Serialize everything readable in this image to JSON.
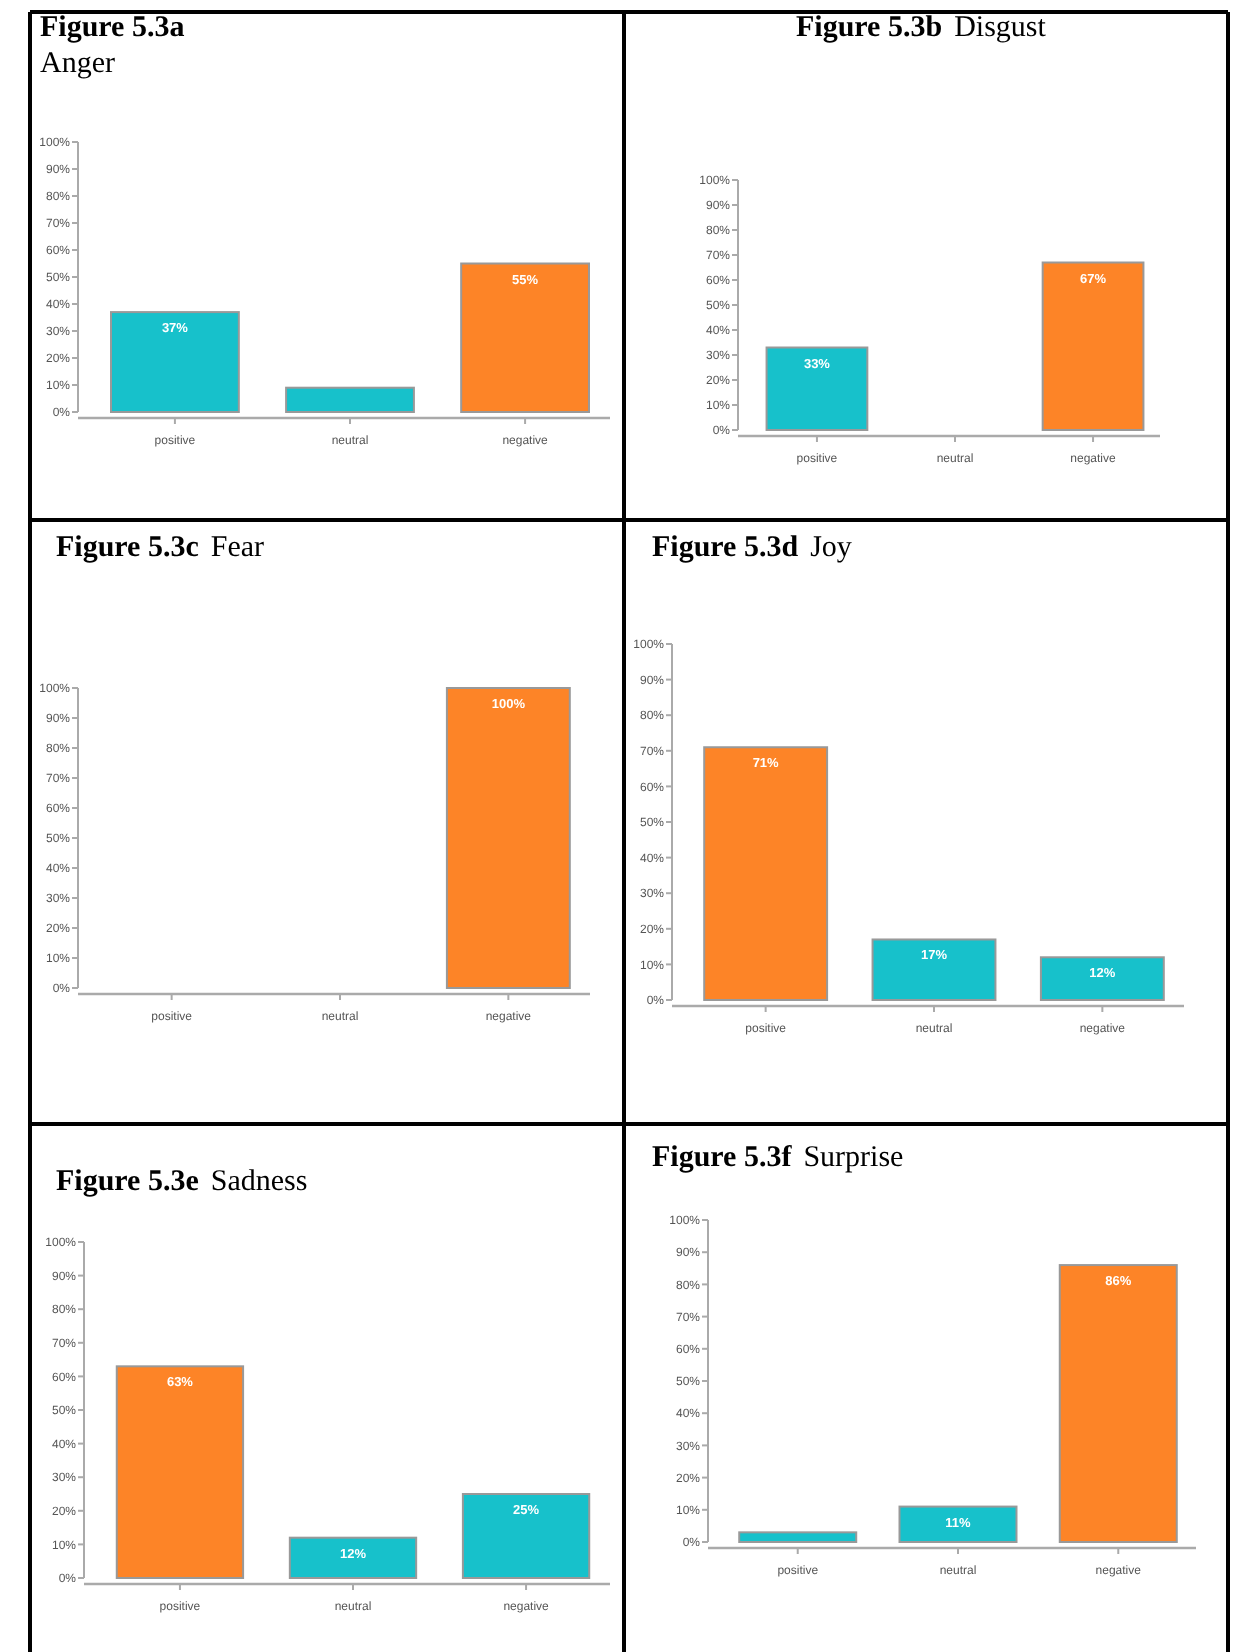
{
  "chart_data": [
    {
      "type": "bar",
      "title": "Figure 5.3a",
      "subtitle": "Anger",
      "categories": [
        "positive",
        "neutral",
        "negative"
      ],
      "values": [
        37,
        9,
        55
      ],
      "value_labels": [
        "37%",
        null,
        "55%"
      ],
      "colors": [
        "#17c1cb",
        "#17c1cb",
        "#fd8427"
      ],
      "ylim": [
        0,
        100
      ],
      "yticks": [
        {
          "value": 0,
          "label": "0%"
        },
        {
          "value": 10,
          "label": "10%"
        },
        {
          "value": 20,
          "label": "20%"
        },
        {
          "value": 30,
          "label": "30%"
        },
        {
          "value": 40,
          "label": "40%"
        },
        {
          "value": 50,
          "label": "50%"
        },
        {
          "value": 60,
          "label": "60%"
        },
        {
          "value": 70,
          "label": "70%"
        },
        {
          "value": 80,
          "label": "80%"
        },
        {
          "value": 90,
          "label": "90%"
        },
        {
          "value": 100,
          "label": "100%"
        }
      ],
      "grid": false
    },
    {
      "type": "bar",
      "title": "Figure 5.3b",
      "subtitle": "Disgust",
      "categories": [
        "positive",
        "neutral",
        "negative"
      ],
      "values": [
        33,
        0,
        67
      ],
      "value_labels": [
        "33%",
        null,
        "67%"
      ],
      "colors": [
        "#17c1cb",
        "#17c1cb",
        "#fd8427"
      ],
      "ylim": [
        0,
        100
      ],
      "yticks": [
        {
          "value": 0,
          "label": "0%"
        },
        {
          "value": 10,
          "label": "10%"
        },
        {
          "value": 20,
          "label": "20%"
        },
        {
          "value": 30,
          "label": "30%"
        },
        {
          "value": 40,
          "label": "40%"
        },
        {
          "value": 50,
          "label": "50%"
        },
        {
          "value": 60,
          "label": "60%"
        },
        {
          "value": 70,
          "label": "70%"
        },
        {
          "value": 80,
          "label": "80%"
        },
        {
          "value": 90,
          "label": "90%"
        },
        {
          "value": 100,
          "label": "100%"
        }
      ],
      "grid": false
    },
    {
      "type": "bar",
      "title": "Figure 5.3c",
      "subtitle": "Fear",
      "categories": [
        "positive",
        "neutral",
        "negative"
      ],
      "values": [
        0,
        0,
        100
      ],
      "value_labels": [
        null,
        null,
        "100%"
      ],
      "colors": [
        "#17c1cb",
        "#17c1cb",
        "#fd8427"
      ],
      "ylim": [
        0,
        100
      ],
      "yticks": [
        {
          "value": 0,
          "label": "0%"
        },
        {
          "value": 10,
          "label": "10%"
        },
        {
          "value": 20,
          "label": "20%"
        },
        {
          "value": 30,
          "label": "30%"
        },
        {
          "value": 40,
          "label": "40%"
        },
        {
          "value": 50,
          "label": "50%"
        },
        {
          "value": 60,
          "label": "60%"
        },
        {
          "value": 70,
          "label": "70%"
        },
        {
          "value": 80,
          "label": "80%"
        },
        {
          "value": 90,
          "label": "90%"
        },
        {
          "value": 100,
          "label": "100%"
        }
      ],
      "grid": false
    },
    {
      "type": "bar",
      "title": "Figure 5.3d",
      "subtitle": "Joy",
      "categories": [
        "positive",
        "neutral",
        "negative"
      ],
      "values": [
        71,
        17,
        12
      ],
      "value_labels": [
        "71%",
        "17%",
        "12%"
      ],
      "colors": [
        "#fd8427",
        "#17c1cb",
        "#17c1cb"
      ],
      "ylim": [
        0,
        100
      ],
      "yticks": [
        {
          "value": 0,
          "label": "0%"
        },
        {
          "value": 10,
          "label": "10%"
        },
        {
          "value": 20,
          "label": "20%"
        },
        {
          "value": 30,
          "label": "30%"
        },
        {
          "value": 40,
          "label": "40%"
        },
        {
          "value": 50,
          "label": "50%"
        },
        {
          "value": 60,
          "label": "60%"
        },
        {
          "value": 70,
          "label": "70%"
        },
        {
          "value": 80,
          "label": "80%"
        },
        {
          "value": 90,
          "label": "90%"
        },
        {
          "value": 100,
          "label": "100%"
        }
      ],
      "grid": false
    },
    {
      "type": "bar",
      "title": "Figure 5.3e",
      "subtitle": "Sadness",
      "categories": [
        "positive",
        "neutral",
        "negative"
      ],
      "values": [
        63,
        12,
        25
      ],
      "value_labels": [
        "63%",
        "12%",
        "25%"
      ],
      "colors": [
        "#fd8427",
        "#17c1cb",
        "#17c1cb"
      ],
      "ylim": [
        0,
        100
      ],
      "yticks": [
        {
          "value": 0,
          "label": "0%"
        },
        {
          "value": 10,
          "label": "10%"
        },
        {
          "value": 20,
          "label": "20%"
        },
        {
          "value": 30,
          "label": "30%"
        },
        {
          "value": 40,
          "label": "40%"
        },
        {
          "value": 50,
          "label": "50%"
        },
        {
          "value": 60,
          "label": "60%"
        },
        {
          "value": 70,
          "label": "70%"
        },
        {
          "value": 80,
          "label": "80%"
        },
        {
          "value": 90,
          "label": "90%"
        },
        {
          "value": 100,
          "label": "100%"
        }
      ],
      "grid": false
    },
    {
      "type": "bar",
      "title": "Figure 5.3f",
      "subtitle": "Surprise",
      "categories": [
        "positive",
        "neutral",
        "negative"
      ],
      "values": [
        3,
        11,
        86
      ],
      "value_labels": [
        null,
        "11%",
        "86%"
      ],
      "colors": [
        "#17c1cb",
        "#17c1cb",
        "#fd8427"
      ],
      "ylim": [
        0,
        100
      ],
      "yticks": [
        {
          "value": 0,
          "label": "0%"
        },
        {
          "value": 10,
          "label": "10%"
        },
        {
          "value": 20,
          "label": "20%"
        },
        {
          "value": 30,
          "label": "30%"
        },
        {
          "value": 40,
          "label": "40%"
        },
        {
          "value": 50,
          "label": "50%"
        },
        {
          "value": 60,
          "label": "60%"
        },
        {
          "value": 70,
          "label": "70%"
        },
        {
          "value": 80,
          "label": "80%"
        },
        {
          "value": 90,
          "label": "90%"
        },
        {
          "value": 100,
          "label": "100%"
        }
      ],
      "grid": false
    }
  ]
}
